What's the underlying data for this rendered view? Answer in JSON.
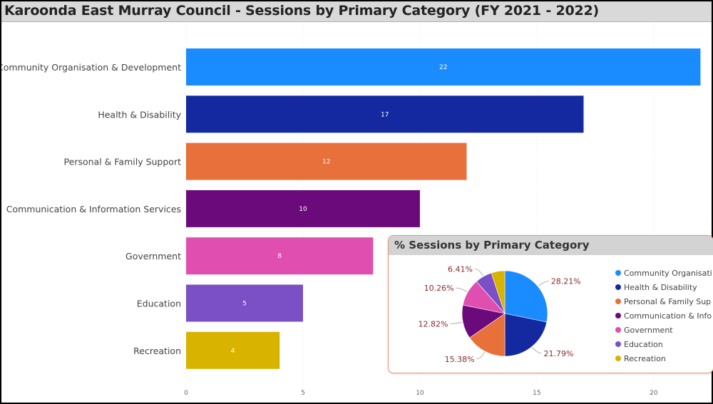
{
  "header": {
    "title": "Karoonda East Murray Council - Sessions by Primary Category (FY 2021 - 2022)"
  },
  "chart_data": [
    {
      "type": "bar",
      "orientation": "horizontal",
      "categories": [
        "Community Organisation & Development",
        "Health & Disability",
        "Personal & Family Support",
        "Communication & Information Services",
        "Government",
        "Education",
        "Recreation"
      ],
      "values": [
        22,
        17,
        12,
        10,
        8,
        5,
        4
      ],
      "colors": [
        "#1a8cff",
        "#1428a0",
        "#e8703a",
        "#6b0a7a",
        "#e04eb0",
        "#7b4fc6",
        "#d8b400"
      ],
      "xticks": [
        0,
        5,
        10,
        15,
        20
      ],
      "xlim": [
        0,
        22.2
      ],
      "data_labels": true,
      "grid": true
    },
    {
      "type": "pie",
      "title": "% Sessions by Primary Category",
      "labels": [
        "Community Organisati...",
        "Health & Disability",
        "Personal & Family Sup...",
        "Communication & Info...",
        "Government",
        "Education",
        "Recreation"
      ],
      "values": [
        28.21,
        21.79,
        15.38,
        12.82,
        10.26,
        6.41,
        5.13
      ],
      "value_labels": [
        "28.21%",
        "21.79%",
        "15.38%",
        "12.82%",
        "10.26%",
        "6.41%",
        ""
      ],
      "colors": [
        "#1a8cff",
        "#1428a0",
        "#e8703a",
        "#6b0a7a",
        "#e04eb0",
        "#7b4fc6",
        "#d8b400"
      ],
      "legend": "right"
    }
  ]
}
